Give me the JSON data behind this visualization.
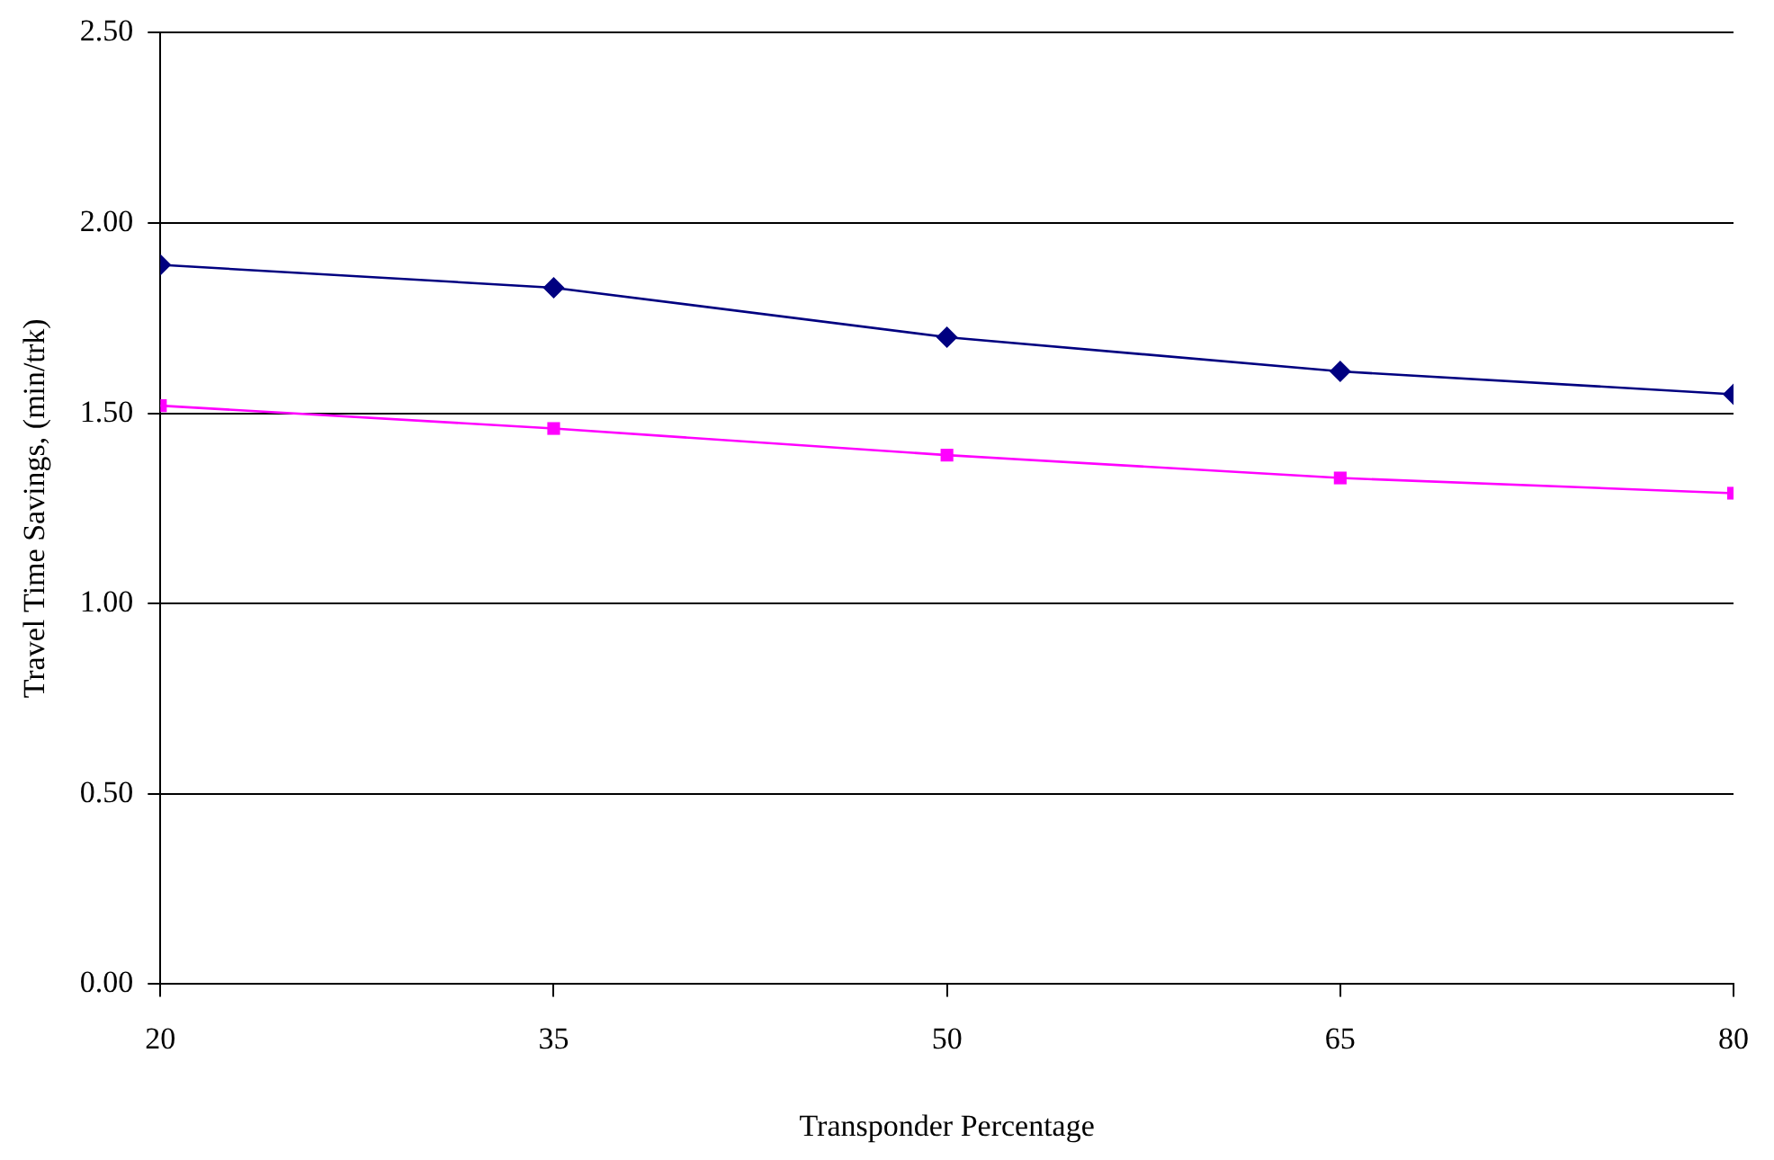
{
  "chart_data": {
    "type": "line",
    "xlabel": "Transponder Percentage",
    "ylabel": "Travel Time Savings, (min/trk)",
    "x": [
      20,
      35,
      50,
      65,
      80
    ],
    "xlim": [
      20,
      80
    ],
    "xticks": [
      20,
      35,
      50,
      65,
      80
    ],
    "ylim": [
      0,
      2.5
    ],
    "yticks": [
      {
        "value": 0,
        "label": "0.00"
      },
      {
        "value": 0.5,
        "label": "0.50"
      },
      {
        "value": 1,
        "label": "1.00"
      },
      {
        "value": 1.5,
        "label": "1.50"
      },
      {
        "value": 2,
        "label": "2.00"
      },
      {
        "value": 2.5,
        "label": "2.50"
      }
    ],
    "grid": "y",
    "series": [
      {
        "color": "#000080",
        "marker": "diamond",
        "values": [
          1.89,
          1.83,
          1.7,
          1.61,
          1.55
        ]
      },
      {
        "color": "#ff00ff",
        "marker": "square",
        "values": [
          1.52,
          1.46,
          1.39,
          1.33,
          1.29
        ]
      }
    ]
  }
}
